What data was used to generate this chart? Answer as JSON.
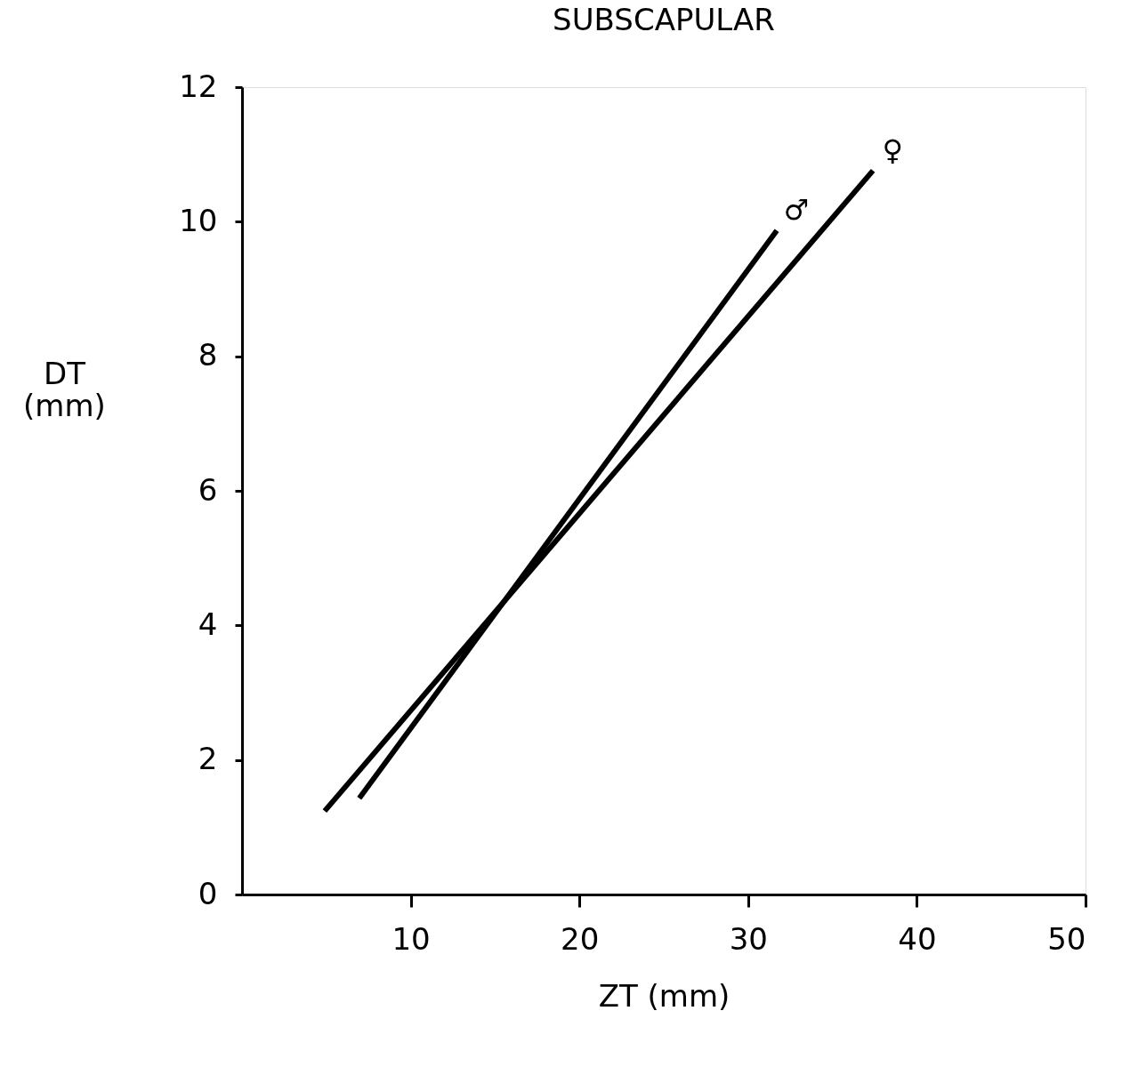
{
  "chart_data": {
    "type": "line",
    "title": "SUBSCAPULAR",
    "xlabel": "ZT (mm)",
    "ylabel": "DT (mm)",
    "xlim": [
      0,
      50
    ],
    "xticks": [
      10,
      20,
      30,
      40,
      50
    ],
    "ylim": [
      0,
      12
    ],
    "yticks": [
      0,
      2,
      4,
      6,
      8,
      10,
      12
    ],
    "grid": false,
    "marker": "none",
    "line_style": "solid",
    "series": [
      {
        "name": "♂",
        "color": "#000000",
        "x": [
          6.95,
          31.7
        ],
        "values": [
          1.43,
          9.87
        ]
      },
      {
        "name": "♀",
        "color": "#000000",
        "x": [
          4.9,
          37.4
        ],
        "values": [
          1.24,
          10.76
        ]
      }
    ]
  }
}
